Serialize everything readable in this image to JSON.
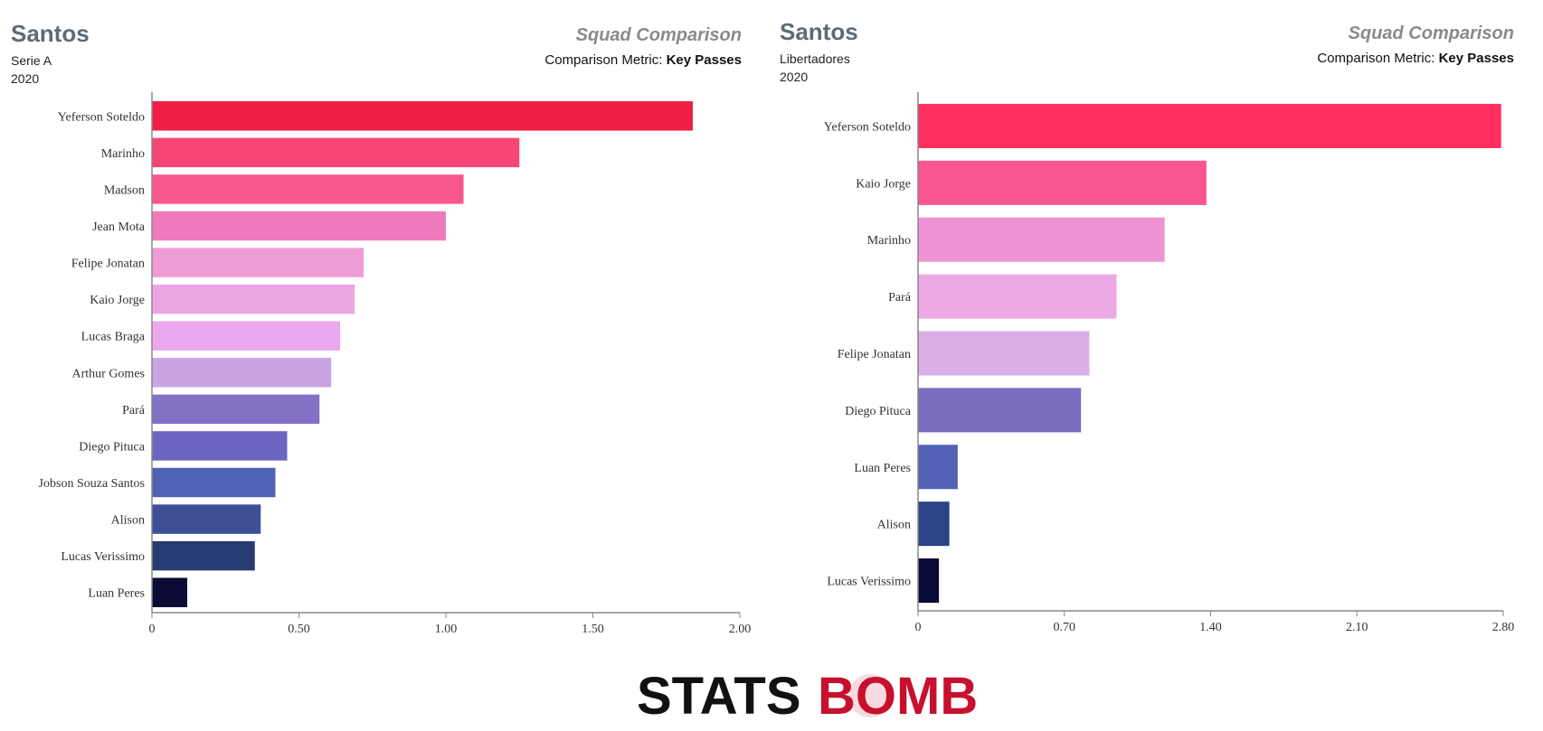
{
  "chart_data": [
    {
      "type": "bar",
      "orientation": "horizontal",
      "team": "Santos",
      "competition": "Serie A",
      "season": "2020",
      "title": "Squad Comparison",
      "metric_label": "Comparison Metric:",
      "metric": "Key Passes",
      "categories": [
        "Yeferson Soteldo",
        "Marinho",
        "Madson",
        "Jean Mota",
        "Felipe Jonatan",
        "Kaio Jorge",
        "Lucas Braga",
        "Arthur Gomes",
        "Pará",
        "Diego Pituca",
        "Jobson Souza Santos",
        "Alison",
        "Lucas Verissimo",
        "Luan Peres"
      ],
      "values": [
        1.84,
        1.25,
        1.06,
        1.0,
        0.72,
        0.69,
        0.64,
        0.61,
        0.57,
        0.46,
        0.42,
        0.37,
        0.35,
        0.12
      ],
      "colors": [
        "#ef1e44",
        "#f74575",
        "#f9578c",
        "#ef7bbd",
        "#ef9cd5",
        "#eca5e3",
        "#eba8ee",
        "#c9a4e2",
        "#8371c6",
        "#6a65c0",
        "#5162b4",
        "#3e4e97",
        "#273b73",
        "#0b0b35"
      ],
      "xlim": [
        0,
        2.0
      ],
      "xticks": [
        "0",
        "0.50",
        "1.00",
        "1.50",
        "2.00"
      ],
      "xtick_values": [
        0,
        0.5,
        1.0,
        1.5,
        2.0
      ]
    },
    {
      "type": "bar",
      "orientation": "horizontal",
      "team": "Santos",
      "competition": "Libertadores",
      "season": "2020",
      "title": "Squad Comparison",
      "metric_label": "Comparison Metric:",
      "metric": "Key Passes",
      "categories": [
        "Yeferson Soteldo",
        "Kaio Jorge",
        "Marinho",
        "Pará",
        "Felipe Jonatan",
        "Diego Pituca",
        "Luan Peres",
        "Alison",
        "Lucas Verissimo"
      ],
      "values": [
        2.79,
        1.38,
        1.18,
        0.95,
        0.82,
        0.78,
        0.19,
        0.15,
        0.1
      ],
      "colors": [
        "#ff2f5e",
        "#f95590",
        "#ee92d5",
        "#eda9e5",
        "#dbaee8",
        "#7b6cc0",
        "#5261b4",
        "#2d4387",
        "#0a0a38"
      ],
      "xlim": [
        0,
        2.8
      ],
      "xticks": [
        "0",
        "0.70",
        "1.40",
        "2.10",
        "2.80"
      ],
      "xtick_values": [
        0,
        0.7,
        1.4,
        2.1,
        2.8
      ]
    }
  ],
  "logo": {
    "part1": "STATS",
    "part2": "BOMB",
    "color1": "#111111",
    "color2": "#c8102e"
  }
}
